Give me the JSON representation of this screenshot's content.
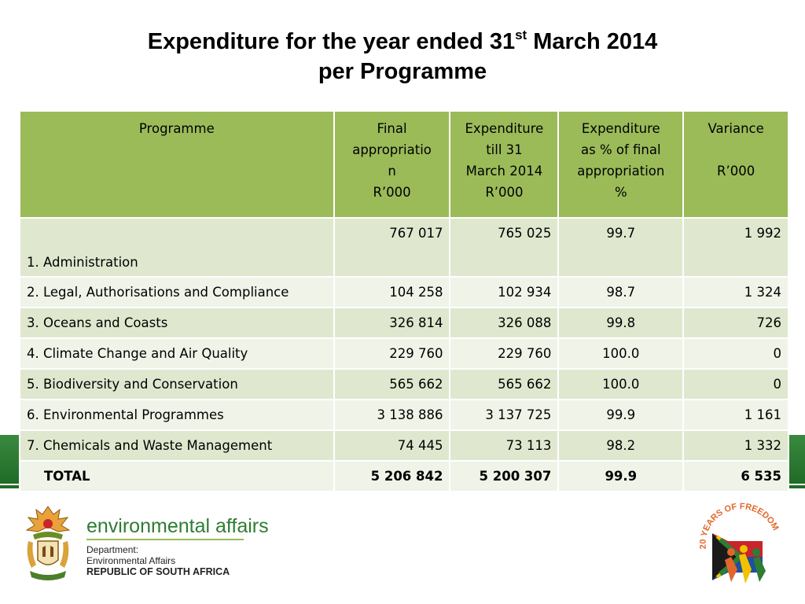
{
  "title": {
    "line1_prefix": "Expenditure for the year ended 31",
    "line1_sup": "st",
    "line1_suffix": " March 2014",
    "line2": "per Programme"
  },
  "table": {
    "headers": {
      "programme": "Programme",
      "final_approp": [
        "Final",
        "appropriatio",
        "n",
        "R’000"
      ],
      "expenditure": [
        "Expenditure",
        "till 31",
        "March 2014",
        "R’000"
      ],
      "exp_pct": [
        "Expenditure",
        "as % of final",
        "appropriation",
        "%"
      ],
      "variance_top": "Variance",
      "variance_unit": "R’000"
    },
    "rows": [
      {
        "programme": "1. Administration",
        "final": "767 017",
        "expenditure": "765 025",
        "pct": "99.7",
        "variance": "1 992"
      },
      {
        "programme": "2. Legal, Authorisations and Compliance",
        "final": "104 258",
        "expenditure": "102 934",
        "pct": "98.7",
        "variance": "1 324"
      },
      {
        "programme": "3. Oceans and Coasts",
        "final": "326 814",
        "expenditure": "326 088",
        "pct": "99.8",
        "variance": "726"
      },
      {
        "programme": "4. Climate Change and Air Quality",
        "final": "229 760",
        "expenditure": "229 760",
        "pct": "100.0",
        "variance": "0"
      },
      {
        "programme": "5. Biodiversity and Conservation",
        "final": "565 662",
        "expenditure": "565 662",
        "pct": "100.0",
        "variance": "0"
      },
      {
        "programme": "6. Environmental Programmes",
        "final": "3 138 886",
        "expenditure": "3 137 725",
        "pct": "99.9",
        "variance": "1 161"
      },
      {
        "programme": "7. Chemicals and Waste Management",
        "final": "74 445",
        "expenditure": "73 113",
        "pct": "98.2",
        "variance": "1 332"
      }
    ],
    "total": {
      "programme": "TOTAL",
      "final": "5 206 842",
      "expenditure": "5 200 307",
      "pct": "99.9",
      "variance": "6 535"
    }
  },
  "footer": {
    "brand_name": "environmental affairs",
    "dept_line1": "Department:",
    "dept_line2": "Environmental Affairs",
    "dept_line3": "REPUBLIC OF SOUTH AFRICA",
    "right_logo_text": "20 YEARS OF FREEDOM",
    "left_logo": "south-african-coat-of-arms",
    "colors": {
      "header_green": "#9bbb59",
      "row_odd": "#dfe8cf",
      "row_even": "#eff3e8",
      "band_green": "#2e7d32"
    }
  }
}
